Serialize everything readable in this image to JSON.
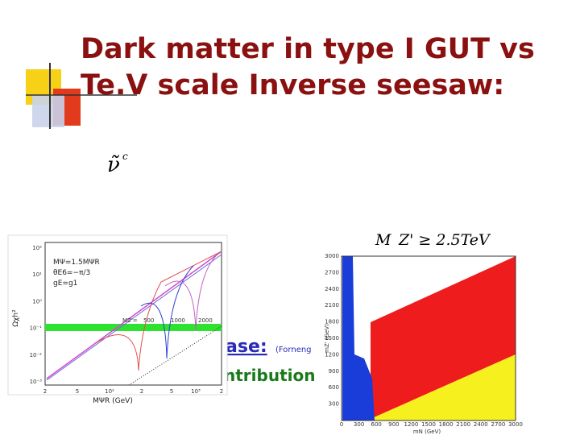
{
  "slide": {
    "title": [
      "Dark matter in type I GUT vs",
      "Te.V scale Inverse seesaw:"
    ],
    "symbol": {
      "base": "ν̃",
      "sup": "c"
    },
    "hidden_text": {
      "word1": "ase:",
      "cite": "(Forneng",
      "word2": "ntribution"
    },
    "bound": "M_Z' ≥ 2.5TeV",
    "left_plot": {
      "yticks": [
        "10²",
        "10¹",
        "10⁰",
        "10⁻¹",
        "10⁻²",
        "10⁻³"
      ],
      "xticks": [
        "2",
        "5",
        "10²",
        "2",
        "5",
        "10³",
        "2"
      ],
      "ylabel": "Ωχh²",
      "xlabel": "MΨR (GeV)",
      "notes": [
        "MΨ=1.5MΨR",
        "θE6=−π/3",
        "gE=g1"
      ],
      "mz_label": "MZ'=",
      "mz_values": [
        "500",
        "1000",
        "2000"
      ]
    },
    "right_plot": {
      "yticks": [
        "300",
        "600",
        "900",
        "1200",
        "1500",
        "1800",
        "2100",
        "2400",
        "2700",
        "3000"
      ],
      "xticks": [
        "0",
        "300",
        "600",
        "900",
        "1200",
        "1500",
        "1800",
        "2100",
        "2400",
        "2700",
        "3000"
      ],
      "ylabel": "mZ' (GeV)",
      "xlabel": "mN (GeV)"
    }
  }
}
